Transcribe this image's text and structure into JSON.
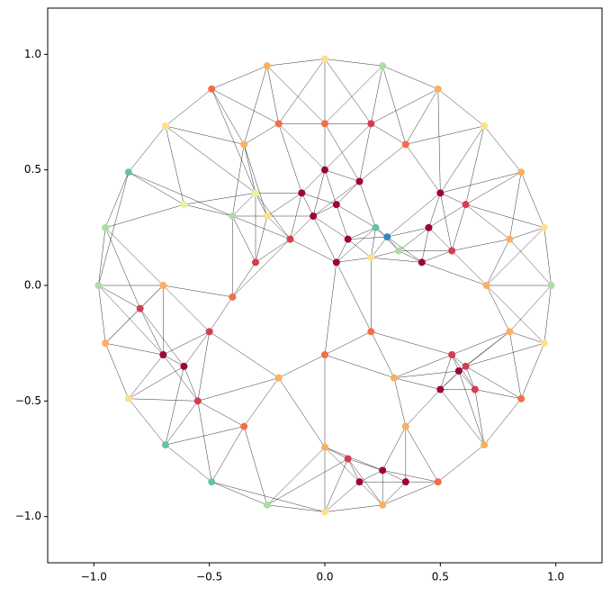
{
  "chart_data": {
    "type": "scatter",
    "xlim": [
      -1.2,
      1.2
    ],
    "ylim": [
      -1.2,
      1.2
    ],
    "xticks": [
      {
        "value": -1,
        "label": "−1.0"
      },
      {
        "value": -0.5,
        "label": "−0.5"
      },
      {
        "value": 0,
        "label": "0.0"
      },
      {
        "value": 0.5,
        "label": "0.5"
      },
      {
        "value": 1,
        "label": "1.0"
      }
    ],
    "yticks": [
      {
        "value": -1,
        "label": "−1.0"
      },
      {
        "value": -0.5,
        "label": "−0.5"
      },
      {
        "value": 0,
        "label": "0.0"
      },
      {
        "value": 0.5,
        "label": "0.5"
      },
      {
        "value": 1,
        "label": "1.0"
      }
    ],
    "mesh": true,
    "x": [
      0.98,
      0.95,
      0.85,
      0.69,
      0.49,
      0.25,
      0,
      -0.25,
      -0.49,
      -0.69,
      -0.85,
      -0.95,
      -0.98,
      -0.95,
      -0.85,
      -0.69,
      -0.49,
      -0.25,
      0,
      0.25,
      0.49,
      0.69,
      0.85,
      0.95,
      0.7,
      0.61,
      0.35,
      0,
      -0.35,
      -0.61,
      -0.7,
      -0.61,
      -0.35,
      0,
      0.35,
      0.61,
      -0.05,
      0.05,
      -0.1,
      0.1,
      -0.15,
      0,
      0.15,
      0.05,
      0.27,
      0.22,
      0.32,
      0.2,
      0.45,
      0.5,
      0.42,
      0.55,
      -0.3,
      -0.4,
      -0.25,
      0.58,
      0.5,
      0.65,
      0.55,
      0.15,
      0.25,
      0.1,
      0.35,
      -0.7,
      -0.8,
      -0.5,
      -0.55,
      -0.4,
      0.2,
      -0.2,
      0.3,
      0,
      -0.3,
      0.2,
      -0.2,
      0.8,
      0.8
    ],
    "values": [
      0,
      0.25,
      0.49,
      0.69,
      0.85,
      0.95,
      0.98,
      0.95,
      0.85,
      0.69,
      0.49,
      0.25,
      0,
      -0.25,
      -0.49,
      -0.69,
      -0.85,
      -0.95,
      -0.98,
      -0.95,
      -0.85,
      -0.69,
      -0.49,
      -0.25,
      0,
      0.35,
      0.61,
      0.7,
      0.61,
      0.35,
      0,
      -0.35,
      -0.61,
      -0.7,
      -0.61,
      -0.35,
      0.3,
      0.35,
      0.4,
      0.2,
      0.2,
      0.5,
      0.45,
      0.1,
      0.21,
      0.25,
      0.15,
      0.12,
      0.25,
      0.4,
      0.1,
      0.15,
      0.4,
      0.3,
      0.3,
      -0.37,
      -0.45,
      -0.45,
      -0.3,
      -0.85,
      -0.8,
      -0.75,
      -0.85,
      -0.3,
      -0.1,
      -0.2,
      -0.5,
      -0.05,
      -0.2,
      -0.4,
      -0.4,
      -0.3,
      0.1,
      0.7,
      0.7,
      0.2,
      -0.2
    ],
    "colors": [
      "#abdda4",
      "#fee08b",
      "#fdae61",
      "#fee08b",
      "#fdae61",
      "#abdda4",
      "#fee08b",
      "#fdae61",
      "#f46d43",
      "#fee08b",
      "#66c2a5",
      "#abdda4",
      "#abdda4",
      "#fdae61",
      "#fee08b",
      "#66c2a5",
      "#66c2a5",
      "#abdda4",
      "#fee08b",
      "#fdae61",
      "#f46d43",
      "#fdae61",
      "#f46d43",
      "#fee08b",
      "#fdae61",
      "#d53e4f",
      "#f46d43",
      "#f46d43",
      "#fdae61",
      "#e6f598",
      "#fdae61",
      "#9e0142",
      "#f46d43",
      "#fdae61",
      "#fdae61",
      "#d53e4f",
      "#9e0142",
      "#9e0142",
      "#9e0142",
      "#9e0142",
      "#d53e4f",
      "#9e0142",
      "#9e0142",
      "#9e0142",
      "#3288bd",
      "#66c2a5",
      "#abdda4",
      "#fee08b",
      "#9e0142",
      "#9e0142",
      "#9e0142",
      "#d53e4f",
      "#e6f598",
      "#abdda4",
      "#fee08b",
      "#9e0142",
      "#9e0142",
      "#d53e4f",
      "#d53e4f",
      "#9e0142",
      "#9e0142",
      "#d53e4f",
      "#9e0142",
      "#9e0142",
      "#d53e4f",
      "#d53e4f",
      "#d53e4f",
      "#f46d43",
      "#f46d43",
      "#fdae61",
      "#fdae61",
      "#f46d43",
      "#d53e4f",
      "#d53e4f",
      "#f46d43",
      "#fdae61",
      "#fdae61"
    ]
  }
}
